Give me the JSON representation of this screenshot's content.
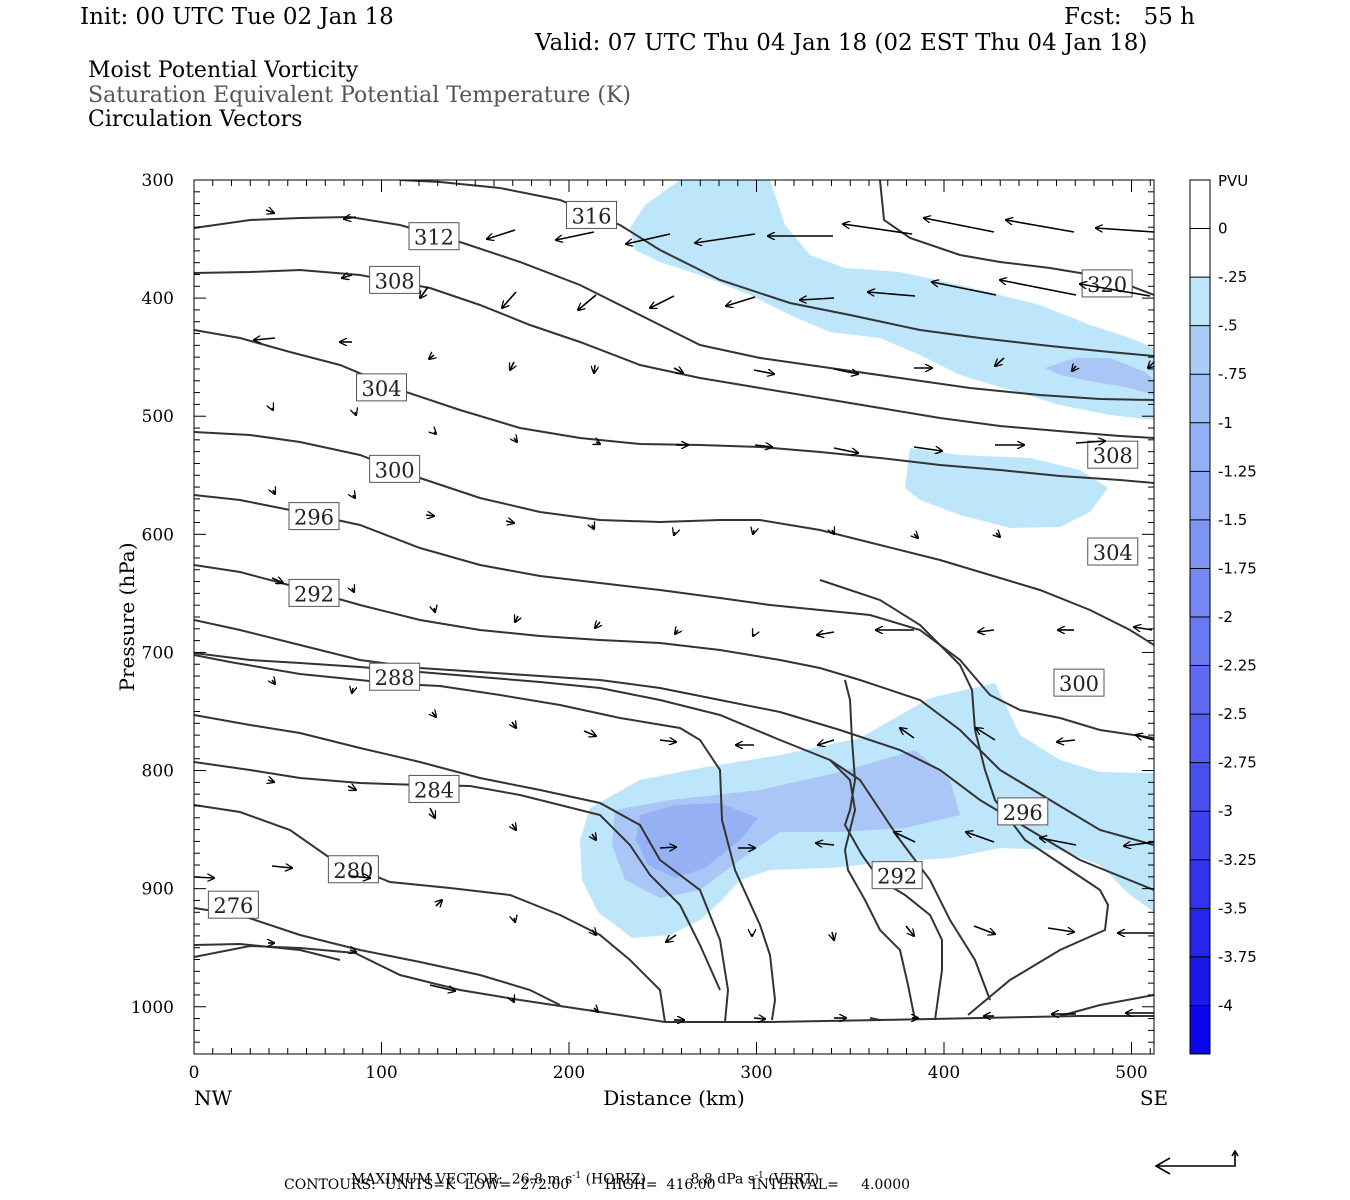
{
  "header": {
    "init": "Init: 00 UTC Tue 02 Jan 18",
    "fcst": "Fcst:   55 h",
    "valid": "Valid: 07 UTC Thu 04 Jan 18 (02 EST Thu 04 Jan 18)",
    "fields": [
      "Moist Potential Vorticity",
      "Saturation Equivalent Potential Temperature (K)",
      "Circulation Vectors"
    ]
  },
  "footer": {
    "max_vector_label": "MAXIMUM VECTOR:",
    "max_vector_horiz": "26.8 m s",
    "max_vector_horiz_sup": "-1",
    "max_vector_horiz_tag": "(HORIZ)",
    "max_vector_vert": "8.8 dPa s",
    "max_vector_vert_sup": "-1",
    "max_vector_vert_tag": "(VERT)",
    "contours_line": "CONTOURS:  UNITS=K  LOW=  272.00        HIGH=  416.00        INTERVAL=     4.0000"
  },
  "colors": {
    "shade_light": "#bde6fb",
    "shade_mid": "#aac6f7",
    "shade_dark": "#96b0f4",
    "contour": "#333333"
  },
  "chart_data": {
    "type": "cross-section",
    "xlabel": "Distance (km)",
    "ylabel": "Pressure (hPa)",
    "xlim": [
      0,
      512
    ],
    "ylim": [
      1040,
      300
    ],
    "x_ticks": [
      "0",
      "100",
      "200",
      "300",
      "400",
      "500"
    ],
    "x_tick_values": [
      0,
      100,
      200,
      300,
      400,
      500
    ],
    "y_ticks": [
      "300",
      "400",
      "500",
      "600",
      "700",
      "800",
      "900",
      "1000"
    ],
    "y_tick_values": [
      300,
      400,
      500,
      600,
      700,
      800,
      900,
      1000
    ],
    "endpoint_left": "NW",
    "endpoint_right": "SE",
    "colorbar": {
      "units": "PVU",
      "labels": [
        "0",
        "-.25",
        "-.5",
        "-.75",
        "-1",
        "-1.25",
        "-1.5",
        "-1.75",
        "-2",
        "-2.25",
        "-2.5",
        "-2.75",
        "-3",
        "-3.25",
        "-3.5",
        "-3.75",
        "-4"
      ],
      "colors": [
        "#ffffff",
        "#ffffff",
        "#bde6fb",
        "#aacdf8",
        "#a0bff7",
        "#95b1f6",
        "#8aa3f5",
        "#7f95f4",
        "#7487f3",
        "#6979f2",
        "#5e6bf1",
        "#535df0",
        "#484fef",
        "#3d41ee",
        "#3233ed",
        "#2725ec",
        "#1c17eb",
        "#0a05ea"
      ]
    },
    "contour_labels": [
      {
        "text": "316",
        "x": 212,
        "y": 330
      },
      {
        "text": "312",
        "x": 128,
        "y": 348
      },
      {
        "text": "308",
        "x": 107,
        "y": 385
      },
      {
        "text": "320",
        "x": 487,
        "y": 388
      },
      {
        "text": "304",
        "x": 100,
        "y": 476
      },
      {
        "text": "308",
        "x": 490,
        "y": 533
      },
      {
        "text": "300",
        "x": 107,
        "y": 545
      },
      {
        "text": "296",
        "x": 64,
        "y": 585
      },
      {
        "text": "304",
        "x": 490,
        "y": 615
      },
      {
        "text": "292",
        "x": 64,
        "y": 650
      },
      {
        "text": "288",
        "x": 107,
        "y": 721
      },
      {
        "text": "300",
        "x": 472,
        "y": 726
      },
      {
        "text": "284",
        "x": 128,
        "y": 816
      },
      {
        "text": "296",
        "x": 442,
        "y": 835
      },
      {
        "text": "280",
        "x": 85,
        "y": 884
      },
      {
        "text": "292",
        "x": 375,
        "y": 889
      },
      {
        "text": "276",
        "x": 21,
        "y": 914
      }
    ]
  }
}
